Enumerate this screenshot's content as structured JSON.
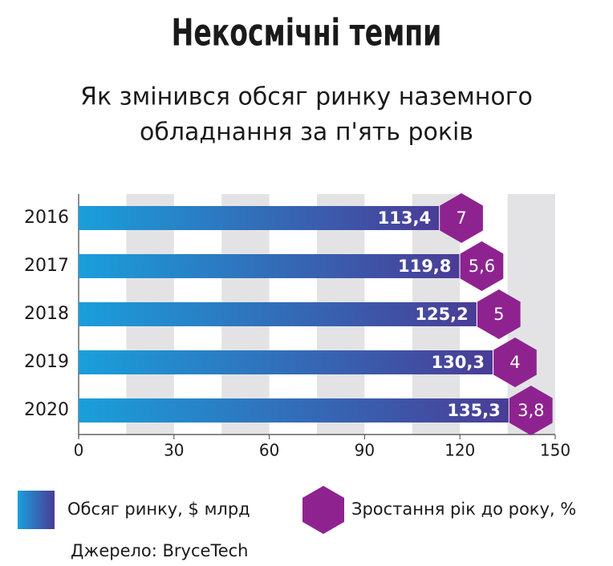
{
  "chart_data": {
    "type": "bar",
    "orientation": "horizontal",
    "title": "Некосмічні темпи",
    "subtitle": [
      "Як змінився обсяг ринку наземного",
      "обладнання за п'ять років"
    ],
    "categories": [
      "2016",
      "2017",
      "2018",
      "2019",
      "2020"
    ],
    "series": [
      {
        "name": "Обсяг ринку, $ млрд",
        "color": [
          "#1a9fdb",
          "#4a3c96"
        ],
        "values": [
          113.4,
          119.8,
          125.2,
          130.3,
          135.3
        ],
        "value_labels": [
          "113,4",
          "119,8",
          "125,2",
          "130,3",
          "135,3"
        ]
      },
      {
        "name": "Зростання рік до року, %",
        "color": "#8e2390",
        "values": [
          7,
          5.6,
          5,
          4,
          3.8
        ],
        "value_labels": [
          "7",
          "5,6",
          "5",
          "4",
          "3,8"
        ]
      }
    ],
    "xlim": [
      0,
      150
    ],
    "xticks": [
      0,
      30,
      60,
      90,
      120,
      150
    ],
    "grid": true,
    "source": "Джерело: BryceTech"
  }
}
